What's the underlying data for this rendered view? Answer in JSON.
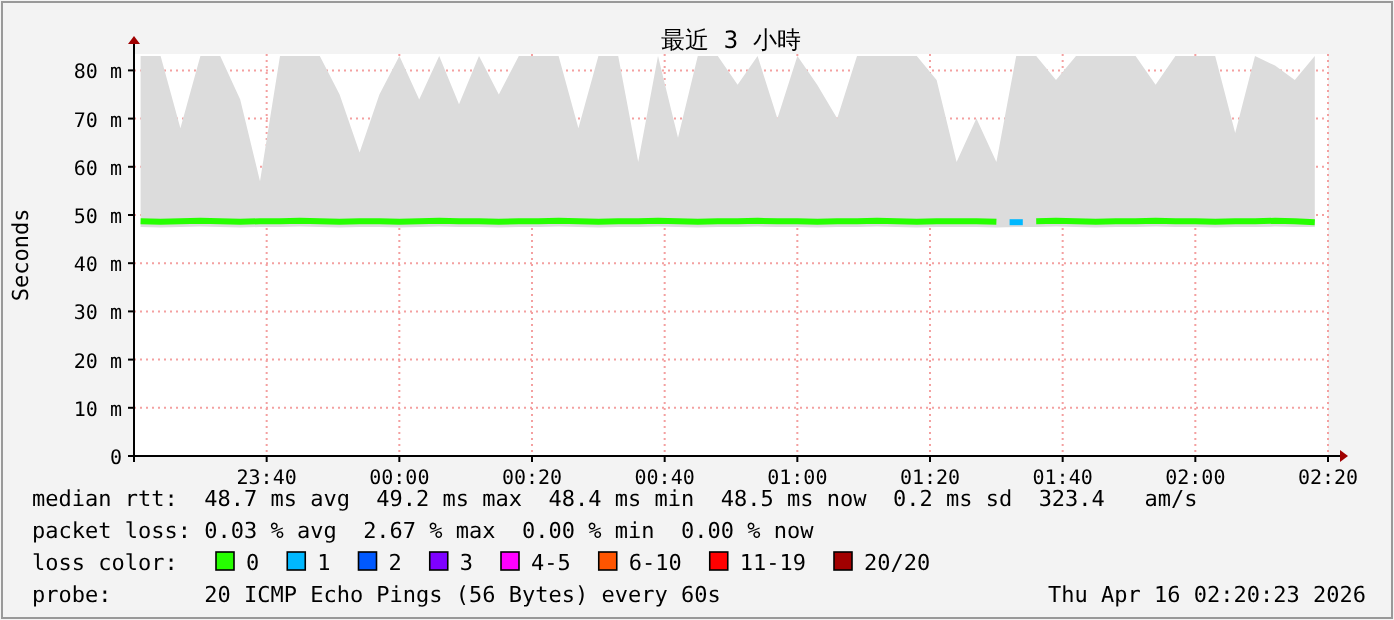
{
  "chart_data": {
    "type": "line",
    "title": "最近 3 小時",
    "ylabel": "Seconds",
    "x": [
      "2026-04-15T23:21",
      "2026-04-15T23:24",
      "2026-04-15T23:27",
      "2026-04-15T23:30",
      "2026-04-15T23:33",
      "2026-04-15T23:36",
      "2026-04-15T23:39",
      "2026-04-15T23:42",
      "2026-04-15T23:45",
      "2026-04-15T23:48",
      "2026-04-15T23:51",
      "2026-04-15T23:54",
      "2026-04-15T23:57",
      "2026-04-16T00:00",
      "2026-04-16T00:03",
      "2026-04-16T00:06",
      "2026-04-16T00:09",
      "2026-04-16T00:12",
      "2026-04-16T00:15",
      "2026-04-16T00:18",
      "2026-04-16T00:21",
      "2026-04-16T00:24",
      "2026-04-16T00:27",
      "2026-04-16T00:30",
      "2026-04-16T00:33",
      "2026-04-16T00:36",
      "2026-04-16T00:39",
      "2026-04-16T00:42",
      "2026-04-16T00:45",
      "2026-04-16T00:48",
      "2026-04-16T00:51",
      "2026-04-16T00:54",
      "2026-04-16T00:57",
      "2026-04-16T01:00",
      "2026-04-16T01:03",
      "2026-04-16T01:06",
      "2026-04-16T01:09",
      "2026-04-16T01:12",
      "2026-04-16T01:15",
      "2026-04-16T01:18",
      "2026-04-16T01:21",
      "2026-04-16T01:24",
      "2026-04-16T01:27",
      "2026-04-16T01:30",
      "2026-04-16T01:33",
      "2026-04-16T01:36",
      "2026-04-16T01:39",
      "2026-04-16T01:42",
      "2026-04-16T01:45",
      "2026-04-16T01:48",
      "2026-04-16T01:51",
      "2026-04-16T01:54",
      "2026-04-16T01:57",
      "2026-04-16T02:00",
      "2026-04-16T02:03",
      "2026-04-16T02:06",
      "2026-04-16T02:09",
      "2026-04-16T02:12",
      "2026-04-16T02:15",
      "2026-04-16T02:18"
    ],
    "series": [
      {
        "name": "0",
        "color": "#26ff00",
        "values": [
          48.7,
          48.6,
          48.7,
          48.8,
          48.7,
          48.6,
          48.7,
          48.7,
          48.8,
          48.7,
          48.6,
          48.7,
          48.7,
          48.6,
          48.7,
          48.8,
          48.7,
          48.7,
          48.6,
          48.7,
          48.7,
          48.8,
          48.7,
          48.6,
          48.7,
          48.7,
          48.8,
          48.7,
          48.6,
          48.7,
          48.7,
          48.8,
          48.7,
          48.7,
          48.6,
          48.7,
          48.7,
          48.8,
          48.7,
          48.6,
          48.7,
          48.7,
          48.7,
          48.6,
          null,
          48.7,
          48.8,
          48.7,
          48.6,
          48.7,
          48.7,
          48.8,
          48.7,
          48.7,
          48.6,
          48.7,
          48.7,
          48.8,
          48.7,
          48.5
        ],
        "lower": [
          47.5,
          47.4,
          47.5,
          47.6,
          47.5,
          47.4,
          47.5,
          47.5,
          47.6,
          47.5,
          47.4,
          47.5,
          47.5,
          47.4,
          47.5,
          47.6,
          47.5,
          47.5,
          47.4,
          47.5,
          47.5,
          47.6,
          47.5,
          47.4,
          47.5,
          47.5,
          47.6,
          47.5,
          47.4,
          47.5,
          47.5,
          47.6,
          47.5,
          47.5,
          47.4,
          47.5,
          47.5,
          47.6,
          47.5,
          47.4,
          47.5,
          47.5,
          47.5,
          47.4,
          47.5,
          47.5,
          47.6,
          47.5,
          47.4,
          47.5,
          47.5,
          47.6,
          47.5,
          47.5,
          47.4,
          47.5,
          47.5,
          47.6,
          47.5,
          47.5
        ],
        "upper": [
          83,
          83,
          68,
          83,
          83,
          74,
          57,
          83,
          83,
          83,
          75,
          63,
          75,
          83,
          74,
          83,
          73,
          83,
          75,
          83,
          83,
          83,
          68,
          83,
          83,
          61,
          83,
          66,
          83,
          83,
          77,
          83,
          70,
          83,
          77,
          70,
          83,
          83,
          83,
          83,
          78,
          61,
          70,
          61,
          83,
          83,
          78,
          83,
          83,
          83,
          83,
          77,
          83,
          83,
          83,
          67,
          83,
          81,
          78,
          83
        ]
      },
      {
        "name": "1",
        "color": "#00b8ff",
        "x": [
          "2026-04-16T01:32",
          "2026-04-16T01:34"
        ],
        "values": [
          48.5,
          48.5
        ]
      },
      {
        "name": "2",
        "color": "#0059ff",
        "values": [
          null,
          null,
          null,
          null,
          null,
          null,
          null,
          null,
          null,
          null,
          null,
          null,
          null,
          null,
          null,
          null,
          null,
          null,
          null,
          null,
          null,
          null,
          null,
          null,
          null,
          null,
          null,
          null,
          null,
          null,
          null,
          null,
          null,
          null,
          null,
          null,
          null,
          null,
          null,
          null,
          null,
          null,
          null,
          null,
          null,
          null,
          null,
          null,
          null,
          null,
          null,
          null,
          null,
          null,
          null,
          null,
          null,
          null,
          null,
          null
        ]
      },
      {
        "name": "3",
        "color": "#7e00ff",
        "values": [
          null,
          null,
          null,
          null,
          null,
          null,
          null,
          null,
          null,
          null,
          null,
          null,
          null,
          null,
          null,
          null,
          null,
          null,
          null,
          null,
          null,
          null,
          null,
          null,
          null,
          null,
          null,
          null,
          null,
          null,
          null,
          null,
          null,
          null,
          null,
          null,
          null,
          null,
          null,
          null,
          null,
          null,
          null,
          null,
          null,
          null,
          null,
          null,
          null,
          null,
          null,
          null,
          null,
          null,
          null,
          null,
          null,
          null,
          null,
          null
        ]
      },
      {
        "name": "4-5",
        "color": "#ff00ff",
        "values": [
          null,
          null,
          null,
          null,
          null,
          null,
          null,
          null,
          null,
          null,
          null,
          null,
          null,
          null,
          null,
          null,
          null,
          null,
          null,
          null,
          null,
          null,
          null,
          null,
          null,
          null,
          null,
          null,
          null,
          null,
          null,
          null,
          null,
          null,
          null,
          null,
          null,
          null,
          null,
          null,
          null,
          null,
          null,
          null,
          null,
          null,
          null,
          null,
          null,
          null,
          null,
          null,
          null,
          null,
          null,
          null,
          null,
          null,
          null,
          null
        ]
      },
      {
        "name": "6-10",
        "color": "#ff5500",
        "values": [
          null,
          null,
          null,
          null,
          null,
          null,
          null,
          null,
          null,
          null,
          null,
          null,
          null,
          null,
          null,
          null,
          null,
          null,
          null,
          null,
          null,
          null,
          null,
          null,
          null,
          null,
          null,
          null,
          null,
          null,
          null,
          null,
          null,
          null,
          null,
          null,
          null,
          null,
          null,
          null,
          null,
          null,
          null,
          null,
          null,
          null,
          null,
          null,
          null,
          null,
          null,
          null,
          null,
          null,
          null,
          null,
          null,
          null,
          null,
          null
        ]
      },
      {
        "name": "11-19",
        "color": "#ff0000",
        "values": [
          null,
          null,
          null,
          null,
          null,
          null,
          null,
          null,
          null,
          null,
          null,
          null,
          null,
          null,
          null,
          null,
          null,
          null,
          null,
          null,
          null,
          null,
          null,
          null,
          null,
          null,
          null,
          null,
          null,
          null,
          null,
          null,
          null,
          null,
          null,
          null,
          null,
          null,
          null,
          null,
          null,
          null,
          null,
          null,
          null,
          null,
          null,
          null,
          null,
          null,
          null,
          null,
          null,
          null,
          null,
          null,
          null,
          null,
          null,
          null
        ]
      },
      {
        "name": "20/20",
        "color": "#a10000",
        "values": [
          null,
          null,
          null,
          null,
          null,
          null,
          null,
          null,
          null,
          null,
          null,
          null,
          null,
          null,
          null,
          null,
          null,
          null,
          null,
          null,
          null,
          null,
          null,
          null,
          null,
          null,
          null,
          null,
          null,
          null,
          null,
          null,
          null,
          null,
          null,
          null,
          null,
          null,
          null,
          null,
          null,
          null,
          null,
          null,
          null,
          null,
          null,
          null,
          null,
          null,
          null,
          null,
          null,
          null,
          null,
          null,
          null,
          null,
          null,
          null
        ]
      }
    ],
    "legend": "bottom",
    "legend_title": "loss color:",
    "xlim": [
      "2026-04-15T23:20",
      "2026-04-16T02:20"
    ],
    "xticks": [
      {
        "value": "2026-04-15T23:40",
        "label": "23:40"
      },
      {
        "value": "2026-04-16T00:00",
        "label": "00:00"
      },
      {
        "value": "2026-04-16T00:20",
        "label": "00:20"
      },
      {
        "value": "2026-04-16T00:40",
        "label": "00:40"
      },
      {
        "value": "2026-04-16T01:00",
        "label": "01:00"
      },
      {
        "value": "2026-04-16T01:20",
        "label": "01:20"
      },
      {
        "value": "2026-04-16T01:40",
        "label": "01:40"
      },
      {
        "value": "2026-04-16T02:00",
        "label": "02:00"
      },
      {
        "value": "2026-04-16T02:20",
        "label": "02:20"
      }
    ],
    "ylim": [
      0,
      83.4
    ],
    "yticks": [
      0,
      {
        "value": 10,
        "label": "10 m"
      },
      {
        "value": 20,
        "label": "20 m"
      },
      {
        "value": 30,
        "label": "30 m"
      },
      {
        "value": 40,
        "label": "40 m"
      },
      {
        "value": 50,
        "label": "50 m"
      },
      {
        "value": 60,
        "label": "60 m"
      },
      {
        "value": 70,
        "label": "70 m"
      },
      {
        "value": 80,
        "label": "80 m"
      }
    ],
    "grid": true,
    "annotations": [
      "median rtt:  48.7 ms avg  49.2 ms max  48.4 ms min  48.5 ms now  0.2 ms sd  323.4   am/s",
      "packet loss: 0.03 % avg  2.67 % max  0.00 % min  0.00 % now",
      "probe:       20 ICMP Echo Pings (56 Bytes) every 60s",
      "Thu Apr 16 02:20:23 2026"
    ]
  }
}
